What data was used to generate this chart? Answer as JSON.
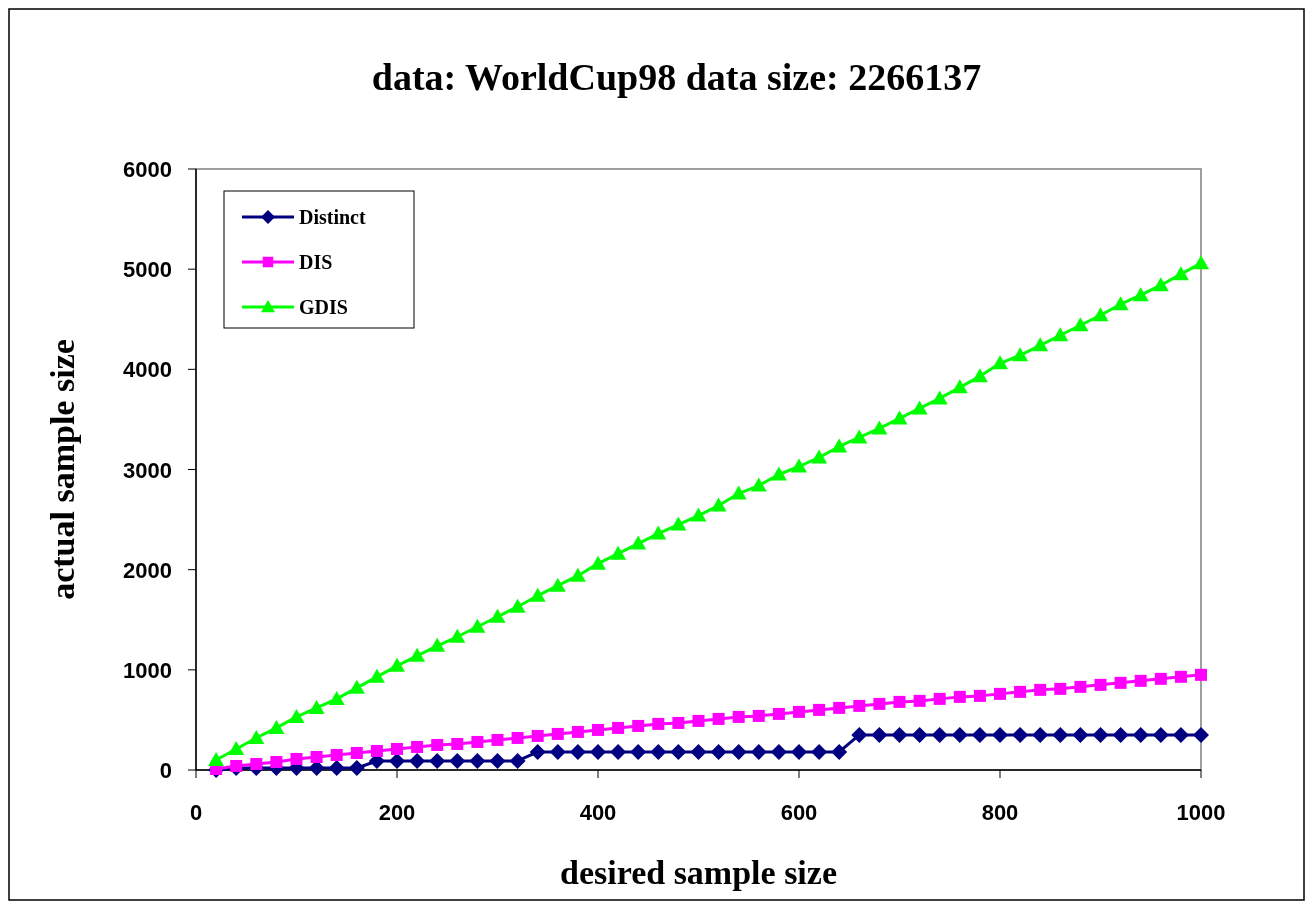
{
  "chart_data": {
    "type": "line",
    "title": "data: WorldCup98 data size: 2266137",
    "xlabel": "desired sample size",
    "ylabel": "actual sample size",
    "x": [
      20,
      40,
      60,
      80,
      100,
      120,
      140,
      160,
      180,
      200,
      220,
      240,
      260,
      280,
      300,
      320,
      340,
      360,
      380,
      400,
      420,
      440,
      460,
      480,
      500,
      520,
      540,
      560,
      580,
      600,
      620,
      640,
      660,
      680,
      700,
      720,
      740,
      760,
      780,
      800,
      820,
      840,
      860,
      880,
      900,
      920,
      940,
      960,
      980,
      1000
    ],
    "series": [
      {
        "name": "Distinct",
        "color": "#000080",
        "marker": "diamond",
        "values": [
          0,
          20,
          20,
          20,
          20,
          20,
          20,
          20,
          90,
          90,
          90,
          90,
          90,
          90,
          90,
          90,
          180,
          180,
          180,
          180,
          180,
          180,
          180,
          180,
          180,
          180,
          180,
          180,
          180,
          180,
          180,
          180,
          350,
          350,
          350,
          350,
          350,
          350,
          350,
          350,
          350,
          350,
          350,
          350,
          350,
          350,
          350,
          350,
          350,
          350
        ]
      },
      {
        "name": "DIS",
        "color": "#ff00ff",
        "marker": "square",
        "values": [
          10,
          40,
          60,
          80,
          110,
          130,
          150,
          170,
          190,
          210,
          230,
          250,
          260,
          280,
          300,
          320,
          340,
          360,
          380,
          400,
          420,
          440,
          460,
          470,
          490,
          510,
          530,
          540,
          560,
          580,
          600,
          620,
          640,
          660,
          680,
          690,
          710,
          730,
          740,
          760,
          780,
          800,
          810,
          830,
          850,
          870,
          890,
          910,
          930,
          950
        ]
      },
      {
        "name": "GDIS",
        "color": "#00ff00",
        "marker": "triangle",
        "values": [
          100,
          210,
          320,
          420,
          530,
          620,
          710,
          820,
          930,
          1040,
          1140,
          1240,
          1330,
          1430,
          1530,
          1630,
          1740,
          1840,
          1940,
          2060,
          2160,
          2260,
          2360,
          2450,
          2540,
          2640,
          2760,
          2840,
          2950,
          3030,
          3120,
          3230,
          3320,
          3410,
          3510,
          3610,
          3710,
          3820,
          3930,
          4060,
          4140,
          4240,
          4340,
          4440,
          4540,
          4650,
          4740,
          4840,
          4950,
          5060
        ]
      }
    ],
    "xlim": [
      0,
      1000
    ],
    "xticks": [
      0,
      200,
      400,
      600,
      800,
      1000
    ],
    "ylim": [
      0,
      6000
    ],
    "yticks": [
      0,
      1000,
      2000,
      3000,
      4000,
      5000,
      6000
    ],
    "grid": false,
    "legend": "top left"
  }
}
